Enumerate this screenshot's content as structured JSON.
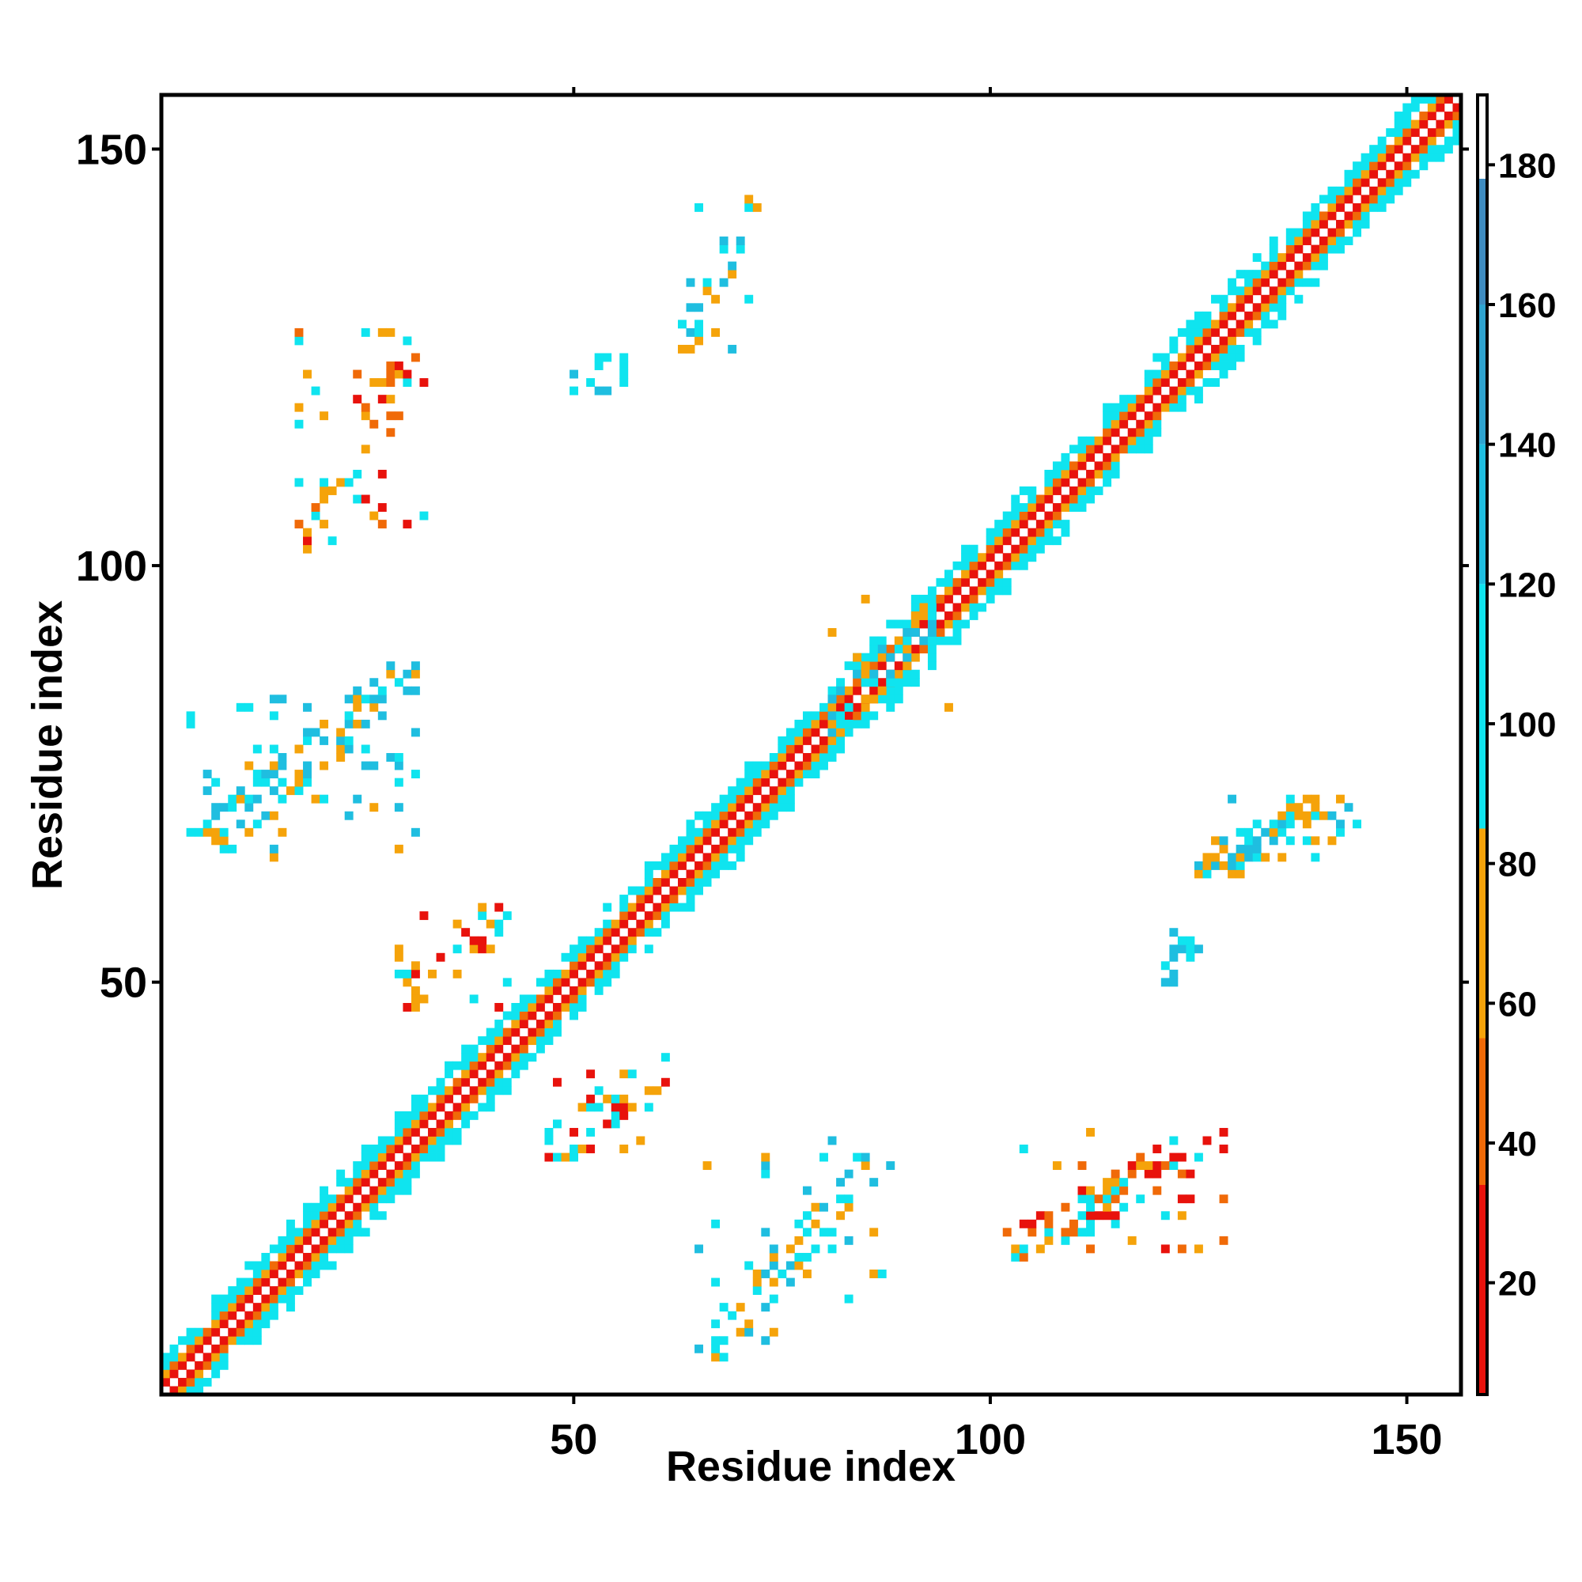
{
  "chart_data": {
    "type": "heatmap",
    "title": "",
    "xlabel": "Residue index",
    "ylabel": "Residue index",
    "xlim": [
      1,
      156
    ],
    "ylim": [
      1,
      156
    ],
    "xticks": [
      50,
      100,
      150
    ],
    "yticks": [
      50,
      100,
      150
    ],
    "colorbar": {
      "range": [
        4,
        190
      ],
      "ticks": [
        20,
        40,
        60,
        80,
        100,
        120,
        140,
        160,
        180
      ],
      "stops": [
        {
          "from": 4,
          "to": 34,
          "color": "#e8120c"
        },
        {
          "from": 34,
          "to": 55,
          "color": "#f06a08"
        },
        {
          "from": 55,
          "to": 85,
          "color": "#f5a30a"
        },
        {
          "from": 85,
          "to": 120,
          "color": "#0fe4ef"
        },
        {
          "from": 120,
          "to": 140,
          "color": "#1fbee0"
        },
        {
          "from": 140,
          "to": 160,
          "color": "#2fa4d0"
        },
        {
          "from": 160,
          "to": 178,
          "color": "#3f8cc0"
        },
        {
          "from": 178,
          "to": 190,
          "color": "#ffffff"
        }
      ]
    },
    "colors": {
      "red": "#e8120c",
      "orange": "#f06a08",
      "amber": "#f5a30a",
      "cyan": "#0fe4ef",
      "sky": "#1fbee0",
      "steel": "#3a96c8"
    },
    "diagonal_band": {
      "from_residue": 1,
      "to_residue": 156,
      "offsets": {
        "1": "red",
        "2": "amber",
        "3": "cyan",
        "4": "cyan"
      }
    },
    "off_diagonal_regions": [
      {
        "name": "sheet-20-28-vs-104-118",
        "x": [
          17,
          32
        ],
        "y": [
          102,
          128
        ],
        "colors": [
          "red",
          "amber",
          "orange",
          "cyan"
        ]
      },
      {
        "name": "sheet-5-30-vs-66-88",
        "x": [
          4,
          31
        ],
        "y": [
          65,
          88
        ],
        "colors": [
          "amber",
          "cyan",
          "sky"
        ]
      },
      {
        "name": "contact-30-45-vs-48-60",
        "x": [
          29,
          42
        ],
        "y": [
          47,
          59
        ],
        "colors": [
          "red",
          "amber",
          "cyan"
        ]
      },
      {
        "name": "contact-63-72-vs-126-144",
        "x": [
          63,
          72
        ],
        "y": [
          126,
          144
        ],
        "colors": [
          "cyan",
          "sky",
          "amber"
        ]
      },
      {
        "name": "contact-50-56-vs-121-125",
        "x": [
          50,
          56
        ],
        "y": [
          121,
          125
        ],
        "colors": [
          "sky",
          "cyan"
        ]
      },
      {
        "name": "contact-80-95-vs-81-96",
        "x": [
          80,
          95
        ],
        "y": [
          80,
          96
        ],
        "colors": [
          "cyan",
          "sky",
          "amber"
        ]
      },
      {
        "name": "contact-48-61-vs-29-41",
        "x": [
          47,
          61
        ],
        "y": [
          29,
          41
        ],
        "colors": [
          "amber",
          "cyan",
          "red"
        ]
      },
      {
        "name": "sheet-66-88-vs-5-30",
        "x": [
          65,
          88
        ],
        "y": [
          4,
          31
        ],
        "colors": [
          "amber",
          "cyan",
          "sky"
        ]
      },
      {
        "name": "sheet-102-128-vs-17-32",
        "x": [
          102,
          128
        ],
        "y": [
          17,
          32
        ],
        "colors": [
          "red",
          "amber",
          "orange",
          "cyan"
        ]
      },
      {
        "name": "contact-125-144-vs-63-72",
        "x": [
          125,
          144
        ],
        "y": [
          63,
          72
        ],
        "colors": [
          "sky",
          "cyan",
          "amber"
        ]
      },
      {
        "name": "contact-121-125-vs-50-56",
        "x": [
          121,
          125
        ],
        "y": [
          50,
          56
        ],
        "colors": [
          "sky",
          "cyan"
        ]
      }
    ]
  }
}
